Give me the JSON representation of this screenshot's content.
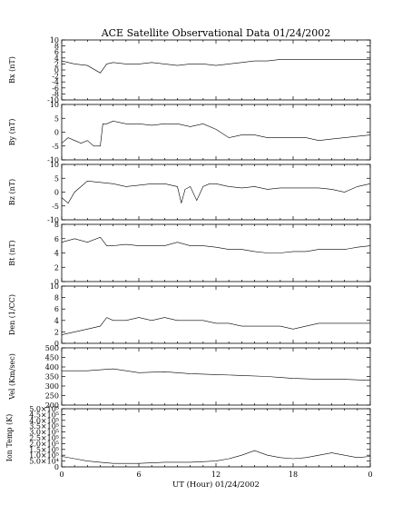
{
  "title": "ACE Satellite Observational Data   01/24/2002",
  "xlabel": "UT (Hour)   01/24/2002",
  "x_tick_labels": [
    "0",
    "6",
    "12",
    "18",
    "0"
  ],
  "chart_data": [
    {
      "type": "line",
      "ylabel": "Bx (nT)",
      "ylim": [
        -10,
        10
      ],
      "yticks": [
        -10,
        -8,
        -6,
        -4,
        -2,
        0,
        2,
        4,
        6,
        8,
        10
      ],
      "ytick_labels": [
        "-10",
        "-8",
        "-6",
        "-4",
        "-2",
        "0",
        "2",
        "4",
        "6",
        "8",
        "10"
      ],
      "series": [
        {
          "x": [
            0,
            1,
            2,
            3,
            3.5,
            4,
            5,
            6,
            7,
            8,
            9,
            10,
            11,
            12,
            13,
            14,
            15,
            16,
            17,
            18,
            19,
            20,
            21,
            22,
            23,
            24
          ],
          "y": [
            3,
            2,
            1.5,
            -1,
            2,
            2.5,
            2,
            2,
            2.5,
            2,
            1.5,
            2,
            2,
            1.5,
            2,
            2.5,
            3,
            3,
            3.5,
            3.5,
            3.5,
            3.5,
            3.5,
            3.5,
            3.5,
            3.5
          ]
        }
      ]
    },
    {
      "type": "line",
      "ylabel": "By (nT)",
      "ylim": [
        -10,
        10
      ],
      "yticks": [
        -10,
        -5,
        0,
        5,
        10
      ],
      "ytick_labels": [
        "-10",
        "-5",
        "0",
        "5",
        "10"
      ],
      "series": [
        {
          "x": [
            0,
            0.5,
            1,
            1.5,
            2,
            2.5,
            3,
            3.2,
            3.5,
            4,
            5,
            6,
            7,
            8,
            9,
            10,
            11,
            12,
            13,
            14,
            15,
            16,
            17,
            18,
            19,
            20,
            21,
            22,
            23,
            24
          ],
          "y": [
            -4,
            -2,
            -3,
            -4,
            -3,
            -5,
            -5,
            3,
            3,
            4,
            3,
            3,
            2.5,
            3,
            3,
            2,
            3,
            1,
            -2,
            -1,
            -1,
            -2,
            -2,
            -2,
            -2,
            -3,
            -2.5,
            -2,
            -1.5,
            -1
          ]
        }
      ]
    },
    {
      "type": "line",
      "ylabel": "Bz (nT)",
      "ylim": [
        -10,
        10
      ],
      "yticks": [
        -10,
        -5,
        0,
        5,
        10
      ],
      "ytick_labels": [
        "-10",
        "-5",
        "0",
        "5",
        "10"
      ],
      "series": [
        {
          "x": [
            0,
            0.5,
            1,
            1.5,
            2,
            3,
            4,
            5,
            6,
            7,
            8,
            9,
            9.3,
            9.6,
            10,
            10.5,
            11,
            11.5,
            12,
            13,
            14,
            15,
            16,
            17,
            18,
            19,
            20,
            21,
            22,
            23,
            24
          ],
          "y": [
            -2,
            -4,
            0,
            2,
            4,
            3.5,
            3,
            2,
            2.5,
            3,
            3,
            2,
            -4,
            1,
            2,
            -3,
            2,
            3,
            3,
            2,
            1.5,
            2,
            1,
            1.5,
            1.5,
            1.5,
            1.5,
            1,
            0,
            2,
            3
          ]
        }
      ]
    },
    {
      "type": "line",
      "ylabel": "Bt (nT)",
      "ylim": [
        0,
        8
      ],
      "yticks": [
        0,
        2,
        4,
        6,
        8
      ],
      "ytick_labels": [
        "0",
        "2",
        "4",
        "6",
        "8"
      ],
      "series": [
        {
          "x": [
            0,
            1,
            2,
            3,
            3.5,
            4,
            5,
            6,
            7,
            8,
            9,
            10,
            11,
            12,
            13,
            14,
            15,
            16,
            17,
            18,
            19,
            20,
            21,
            22,
            23,
            24
          ],
          "y": [
            5.5,
            6,
            5.5,
            6.2,
            5,
            5,
            5.2,
            5,
            5,
            5,
            5.5,
            5,
            5,
            4.8,
            4.5,
            4.5,
            4.2,
            4,
            4,
            4.2,
            4.2,
            4.5,
            4.5,
            4.5,
            4.8,
            5
          ]
        }
      ]
    },
    {
      "type": "line",
      "ylabel": "Den (1/CC)",
      "ylim": [
        0,
        10
      ],
      "yticks": [
        0,
        2,
        4,
        6,
        8,
        10
      ],
      "ytick_labels": [
        "0",
        "2",
        "4",
        "6",
        "8",
        "10"
      ],
      "series": [
        {
          "x": [
            0,
            1,
            2,
            3,
            3.5,
            4,
            5,
            6,
            7,
            8,
            9,
            10,
            11,
            12,
            13,
            14,
            15,
            16,
            17,
            18,
            19,
            20,
            21,
            22,
            23,
            24
          ],
          "y": [
            1.5,
            2,
            2.5,
            3,
            4.5,
            4,
            4,
            4.5,
            4,
            4.5,
            4,
            4,
            4,
            3.5,
            3.5,
            3,
            3,
            3,
            3,
            2.5,
            3,
            3.5,
            3.5,
            3.5,
            3.5,
            3.5
          ]
        }
      ]
    },
    {
      "type": "line",
      "ylabel": "Vel (Km/sec)",
      "ylim": [
        200,
        500
      ],
      "yticks": [
        200,
        250,
        300,
        350,
        400,
        450,
        500
      ],
      "ytick_labels": [
        "200",
        "250",
        "300",
        "350",
        "400",
        "450",
        "500"
      ],
      "series": [
        {
          "x": [
            0,
            2,
            4,
            6,
            8,
            10,
            12,
            14,
            16,
            17,
            18,
            20,
            22,
            24
          ],
          "y": [
            380,
            380,
            390,
            370,
            375,
            365,
            360,
            355,
            350,
            345,
            340,
            335,
            335,
            330
          ]
        }
      ]
    },
    {
      "type": "line",
      "ylabel": "Ion Temp (K)",
      "ylim": [
        0,
        500000
      ],
      "yticks": [
        0,
        50000,
        100000,
        150000,
        200000,
        250000,
        300000,
        350000,
        400000,
        450000,
        500000
      ],
      "ytick_labels": [
        "0",
        "5.0×10⁴",
        "1.0×10⁵",
        "1.5×10⁵",
        "2.0×10⁵",
        "2.5×10⁵",
        "3.0×10⁵",
        "3.5×10⁵",
        "4.0×10⁵",
        "4.5×10⁵",
        "5.0×10⁵"
      ],
      "series": [
        {
          "x": [
            0,
            1,
            2,
            3,
            4,
            6,
            8,
            10,
            12,
            13,
            14,
            15,
            16,
            17,
            18,
            19,
            20,
            21,
            22,
            23,
            24
          ],
          "y": [
            90000,
            70000,
            50000,
            40000,
            30000,
            30000,
            40000,
            40000,
            50000,
            70000,
            100000,
            140000,
            100000,
            80000,
            70000,
            80000,
            100000,
            120000,
            100000,
            80000,
            90000
          ]
        }
      ]
    }
  ]
}
